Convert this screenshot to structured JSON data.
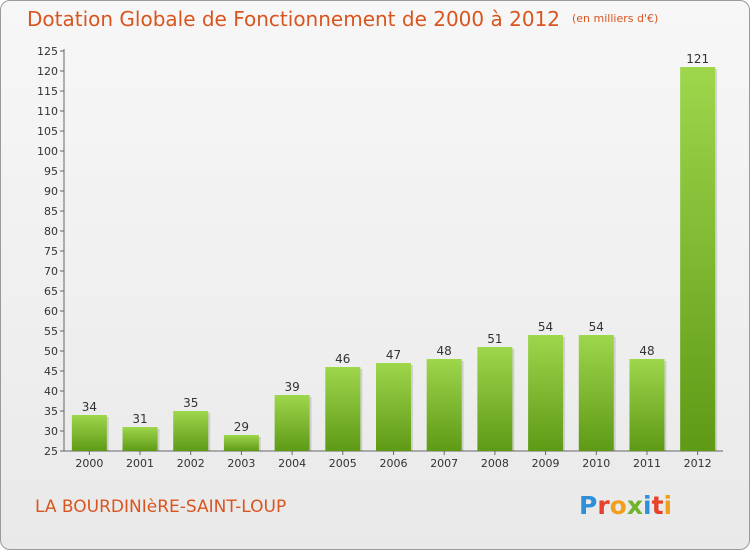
{
  "header": {
    "title": "Dotation Globale de Fonctionnement de 2000 à 2012",
    "subtitle": "(en milliers d'€)"
  },
  "footer": {
    "commune": "LA BOURDINIèRE-SAINT-LOUP",
    "brand": "Proxiti"
  },
  "colors": {
    "title": "#d9551f",
    "bar_top": "#9ed64c",
    "bar_bottom": "#5f9a16"
  },
  "chart_data": {
    "type": "bar",
    "categories": [
      "2000",
      "2001",
      "2002",
      "2003",
      "2004",
      "2005",
      "2006",
      "2007",
      "2008",
      "2009",
      "2010",
      "2011",
      "2012"
    ],
    "values": [
      34,
      31,
      35,
      29,
      39,
      46,
      47,
      48,
      51,
      54,
      54,
      48,
      121
    ],
    "title": "Dotation Globale de Fonctionnement de 2000 à 2012",
    "subtitle": "(en milliers d'€)",
    "ylim": [
      25,
      125
    ],
    "ytick_step": 5,
    "grid": false,
    "data_labels": true
  }
}
